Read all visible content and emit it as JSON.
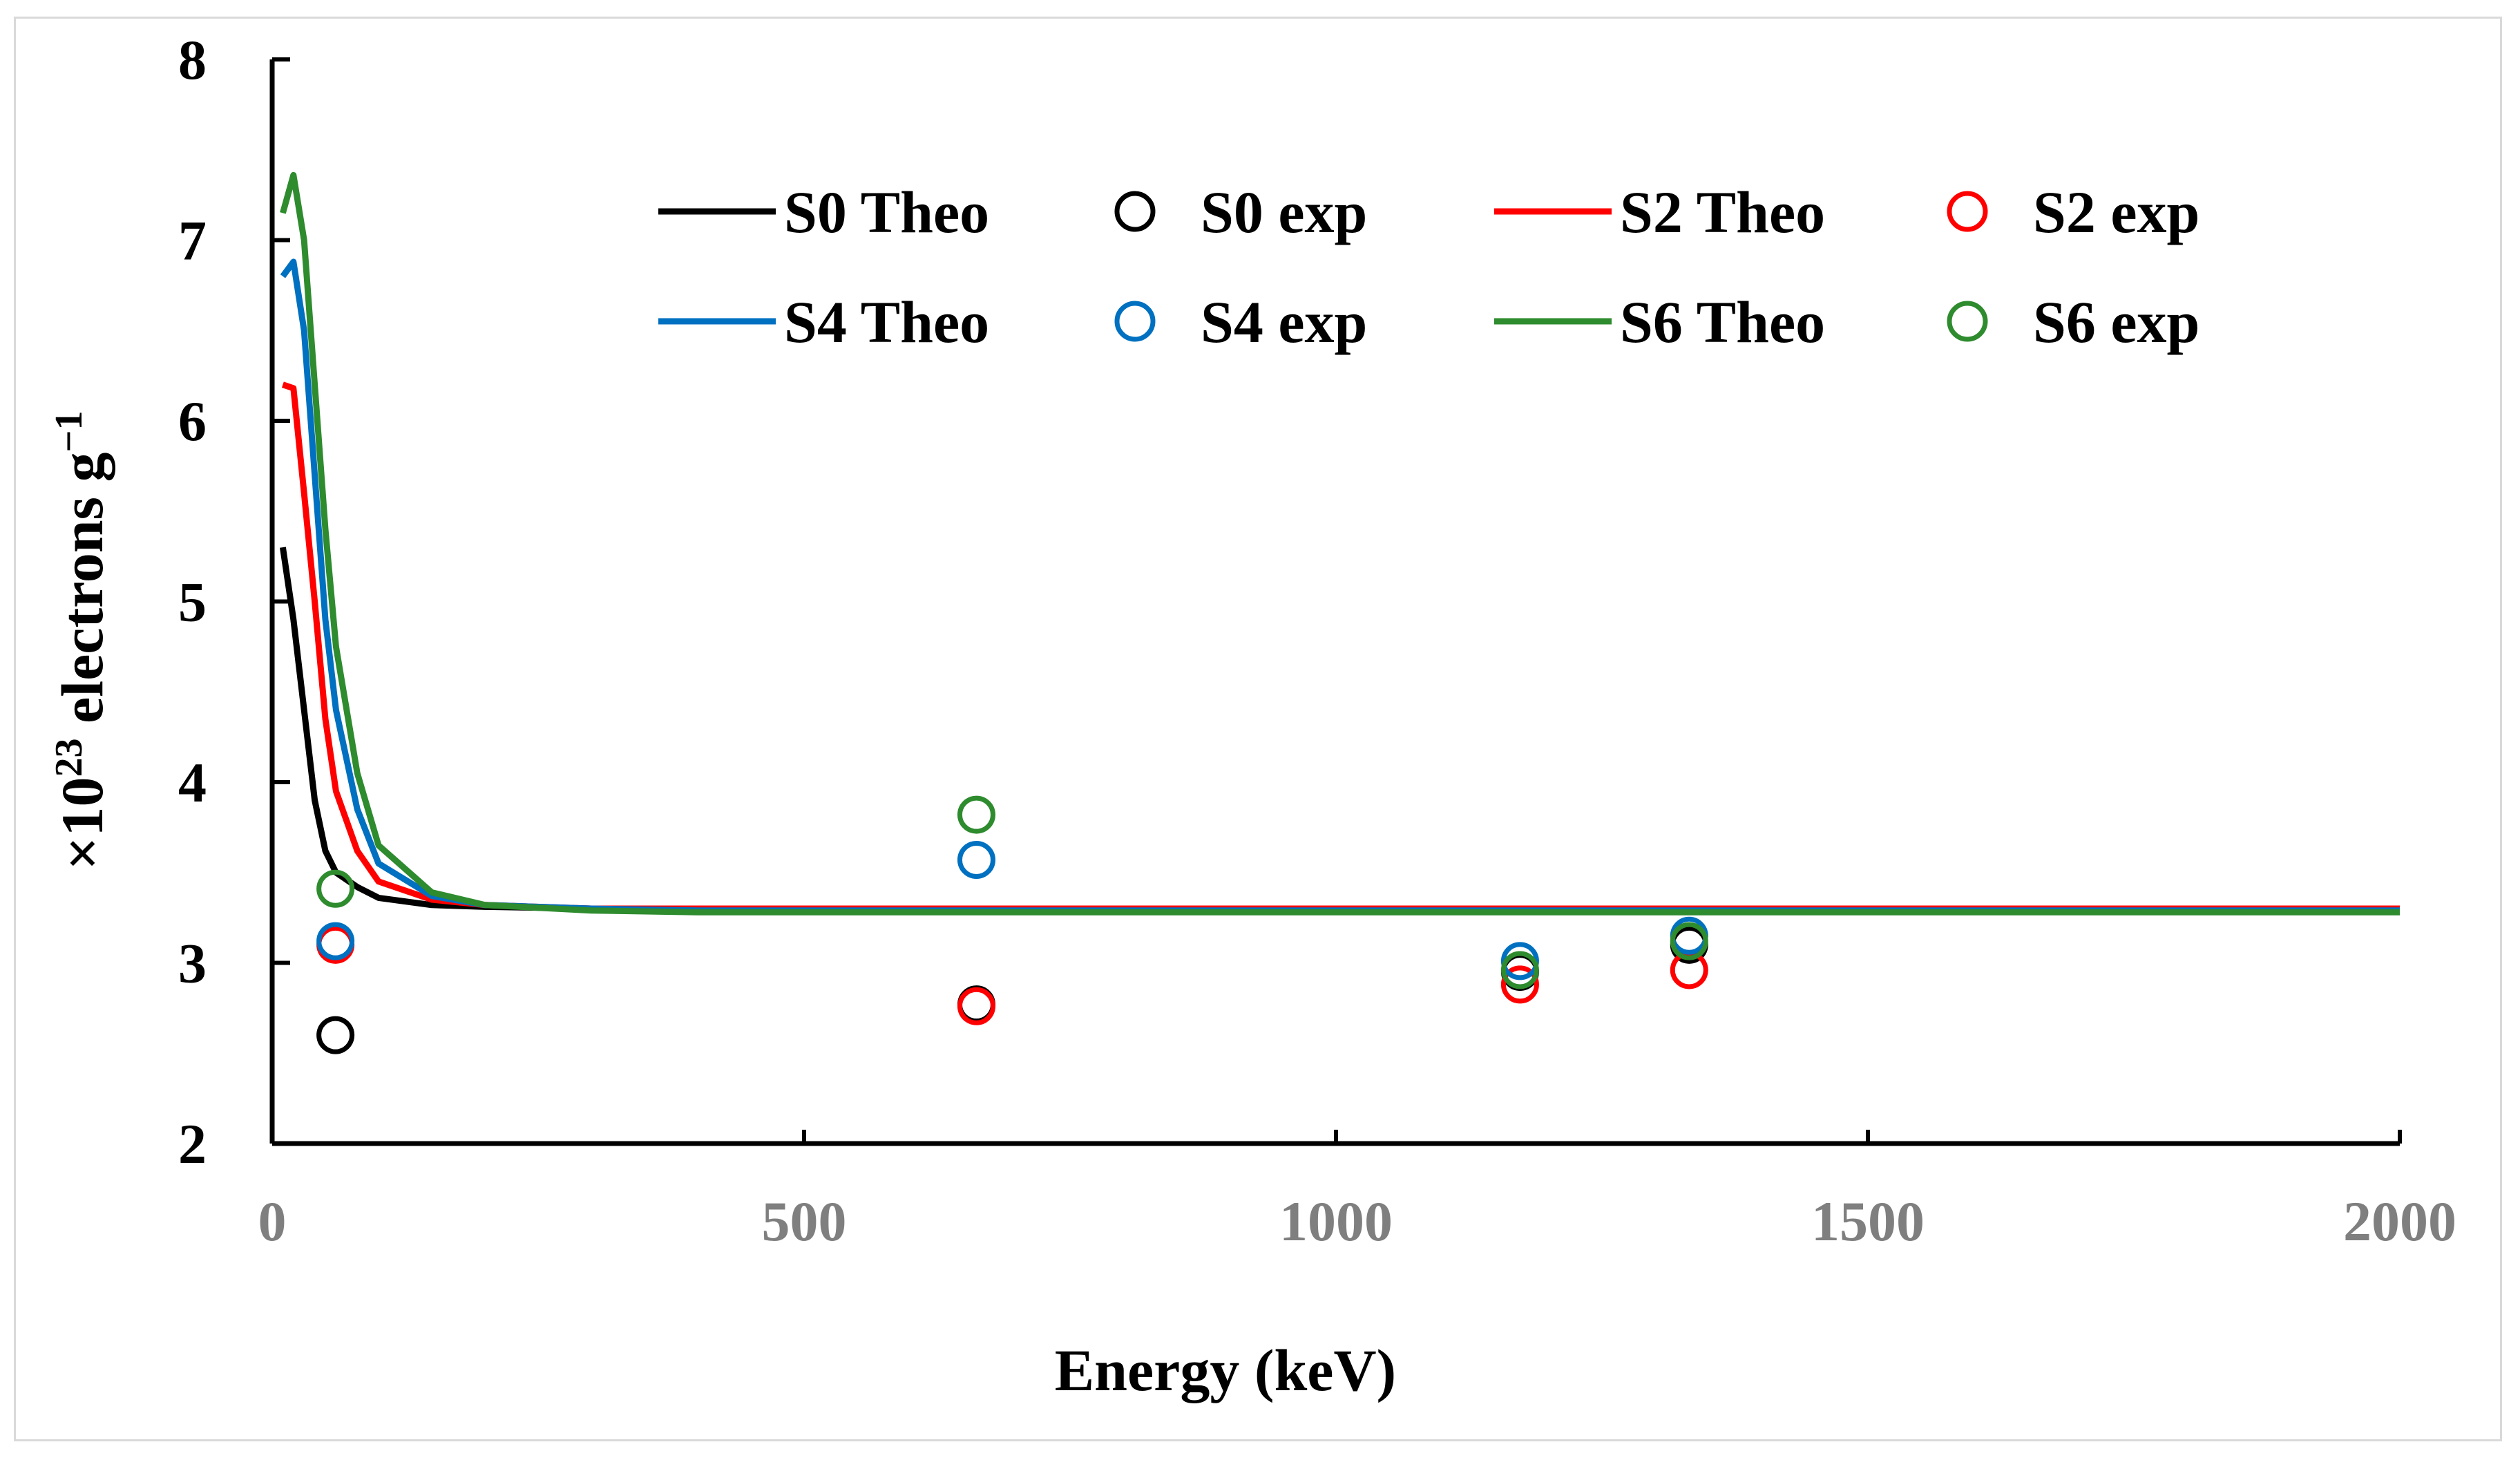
{
  "chart_data": {
    "type": "line",
    "title": "",
    "xlabel": "Energy (keV)",
    "ylabel_prefix": "×10",
    "ylabel_sup": "23",
    "ylabel_main": " electrons g",
    "ylabel_sup2": "−1",
    "xlim": [
      0,
      2000
    ],
    "ylim": [
      2,
      8
    ],
    "xticks": [
      "0",
      "500",
      "1000",
      "1500",
      "2000"
    ],
    "yticks": [
      "2",
      "3",
      "4",
      "5",
      "6",
      "7",
      "8"
    ],
    "legend_position": "top-right (inside plot)",
    "series": [
      {
        "name": "S0 Theo",
        "kind": "line",
        "color": "#000000",
        "x": [
          10,
          20,
          30,
          40,
          50,
          60,
          80,
          100,
          150,
          200,
          300,
          400,
          500,
          600,
          800,
          1000,
          1250,
          1500,
          2000
        ],
        "y": [
          5.3,
          4.9,
          4.4,
          3.9,
          3.62,
          3.5,
          3.42,
          3.36,
          3.32,
          3.31,
          3.3,
          3.3,
          3.3,
          3.3,
          3.3,
          3.3,
          3.3,
          3.3,
          3.3
        ]
      },
      {
        "name": "S2 Theo",
        "kind": "line",
        "color": "#ff0000",
        "x": [
          10,
          20,
          30,
          40,
          50,
          60,
          80,
          100,
          150,
          200,
          300,
          400,
          500,
          600,
          800,
          1000,
          1250,
          1500,
          2000
        ],
        "y": [
          6.2,
          6.18,
          5.6,
          5.0,
          4.35,
          3.95,
          3.62,
          3.45,
          3.35,
          3.32,
          3.3,
          3.3,
          3.3,
          3.3,
          3.3,
          3.3,
          3.3,
          3.3,
          3.3
        ]
      },
      {
        "name": "S4 Theo",
        "kind": "line",
        "color": "#0070c0",
        "x": [
          10,
          20,
          30,
          40,
          50,
          60,
          80,
          100,
          150,
          200,
          300,
          400,
          500,
          600,
          800,
          1000,
          1250,
          1500,
          2000
        ],
        "y": [
          6.8,
          6.88,
          6.5,
          5.7,
          4.9,
          4.4,
          3.85,
          3.55,
          3.37,
          3.32,
          3.3,
          3.29,
          3.29,
          3.29,
          3.29,
          3.29,
          3.29,
          3.29,
          3.29
        ]
      },
      {
        "name": "S6 Theo",
        "kind": "line",
        "color": "#2e8b2e",
        "x": [
          10,
          20,
          30,
          40,
          50,
          60,
          80,
          100,
          150,
          200,
          300,
          400,
          500,
          600,
          800,
          1000,
          1250,
          1500,
          2000
        ],
        "y": [
          7.15,
          7.36,
          7.0,
          6.2,
          5.4,
          4.75,
          4.05,
          3.65,
          3.39,
          3.32,
          3.29,
          3.28,
          3.28,
          3.28,
          3.28,
          3.28,
          3.28,
          3.28,
          3.28
        ]
      },
      {
        "name": "S0 exp",
        "kind": "scatter",
        "color": "#000000",
        "x": [
          59.5,
          662,
          1173,
          1332
        ],
        "y": [
          2.6,
          2.77,
          2.95,
          3.1
        ]
      },
      {
        "name": "S2 exp",
        "kind": "scatter",
        "color": "#ff0000",
        "x": [
          59.5,
          662,
          1173,
          1332
        ],
        "y": [
          3.1,
          2.76,
          2.88,
          2.96
        ]
      },
      {
        "name": "S4 exp",
        "kind": "scatter",
        "color": "#0070c0",
        "x": [
          59.5,
          662,
          1173,
          1332
        ],
        "y": [
          3.12,
          3.57,
          3.01,
          3.15
        ]
      },
      {
        "name": "S6 exp",
        "kind": "scatter",
        "color": "#2e8b2e",
        "x": [
          59.5,
          662,
          1173,
          1332
        ],
        "y": [
          3.41,
          3.82,
          2.96,
          3.12
        ]
      }
    ],
    "legend": [
      {
        "label": "S0 Theo",
        "kind": "line",
        "color": "#000000"
      },
      {
        "label": "S0 exp",
        "kind": "scatter",
        "color": "#000000"
      },
      {
        "label": "S2 Theo",
        "kind": "line",
        "color": "#ff0000"
      },
      {
        "label": "S2 exp",
        "kind": "scatter",
        "color": "#ff0000"
      },
      {
        "label": "S4 Theo",
        "kind": "line",
        "color": "#0070c0"
      },
      {
        "label": "S4 exp",
        "kind": "scatter",
        "color": "#0070c0"
      },
      {
        "label": "S6 Theo",
        "kind": "line",
        "color": "#2e8b2e"
      },
      {
        "label": "S6 exp",
        "kind": "scatter",
        "color": "#2e8b2e"
      }
    ]
  }
}
